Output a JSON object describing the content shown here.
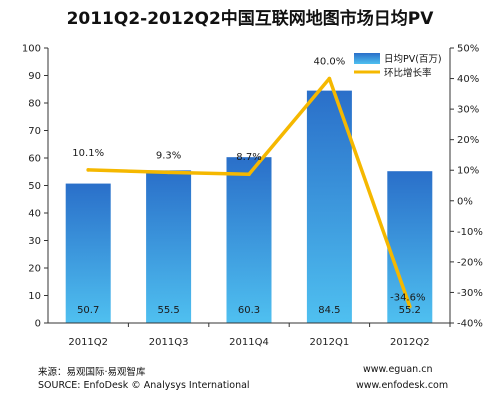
{
  "chart_data": {
    "type": "bar",
    "title": "2011Q2-2012Q2中国互联网地图市场日均PV",
    "categories": [
      "2011Q2",
      "2011Q3",
      "2011Q4",
      "2012Q1",
      "2012Q2"
    ],
    "series": [
      {
        "name": "日均PV(百万)",
        "type": "bar",
        "axis": "left",
        "values": [
          50.7,
          55.5,
          60.3,
          84.5,
          55.2
        ],
        "labels": [
          "50.7",
          "55.5",
          "60.3",
          "84.5",
          "55.2"
        ]
      },
      {
        "name": "环比增长率",
        "type": "line",
        "axis": "right",
        "values": [
          10.1,
          9.3,
          8.7,
          40.0,
          -34.6
        ],
        "labels": [
          "10.1%",
          "9.3%",
          "8.7%",
          "40.0%",
          "-34.6%"
        ]
      }
    ],
    "yleft": {
      "range": [
        0,
        100
      ],
      "ticks": [
        "0",
        "10",
        "20",
        "30",
        "40",
        "50",
        "60",
        "70",
        "80",
        "90",
        "100"
      ]
    },
    "yright": {
      "range": [
        -40,
        50
      ],
      "ticks": [
        "-40%",
        "-30%",
        "-20%",
        "-10%",
        "0%",
        "10%",
        "20%",
        "30%",
        "40%",
        "50%"
      ]
    },
    "legend": "top-right",
    "colors": {
      "bar_top": "#2a6fc9",
      "bar_bottom": "#4fc0f0",
      "line": "#f5b800"
    }
  },
  "footer": {
    "source_cn": "来源：易观国际·易观智库",
    "source_en": "SOURCE: EnfoDesk © Analysys International",
    "url1": "www.eguan.cn",
    "url2": "www.enfodesk.com"
  }
}
